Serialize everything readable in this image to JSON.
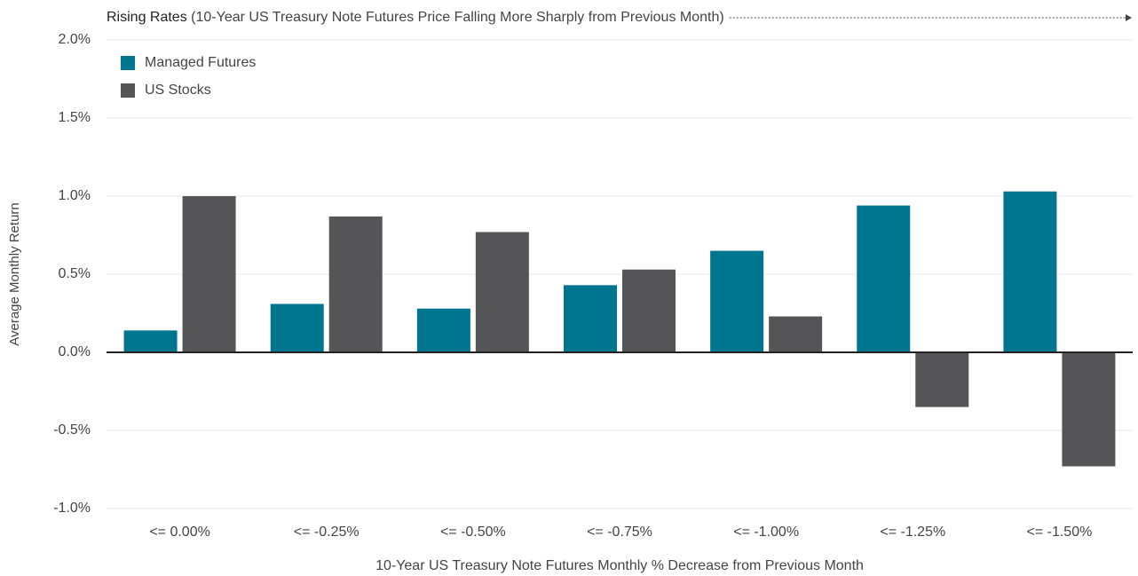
{
  "chart_data": {
    "type": "bar",
    "title": "Rising Rates",
    "subtitle": "(10-Year US Treasury Note Futures Price Falling More Sharply from Previous Month)",
    "x_label": "10-Year US Treasury Note Futures Monthly % Decrease from Previous Month",
    "y_label": "Average Monthly Return",
    "categories": [
      "<= 0.00%",
      "<= -0.25%",
      "<= -0.50%",
      "<= -0.75%",
      "<= -1.00%",
      "<= -1.25%",
      "<= -1.50%"
    ],
    "series": [
      {
        "name": "Managed Futures",
        "color": "#00758f",
        "values": [
          0.14,
          0.31,
          0.28,
          0.43,
          0.65,
          0.94,
          1.03
        ]
      },
      {
        "name": "US Stocks",
        "color": "#555557",
        "values": [
          1.0,
          0.87,
          0.77,
          0.53,
          0.23,
          -0.35,
          -0.73
        ]
      }
    ],
    "ylim": [
      -1.0,
      2.0
    ],
    "yticks": [
      {
        "value": -1.0,
        "label": "-1.0%"
      },
      {
        "value": -0.5,
        "label": "-0.5%"
      },
      {
        "value": 0.0,
        "label": "0.0%"
      },
      {
        "value": 0.5,
        "label": "0.5%"
      },
      {
        "value": 1.0,
        "label": "1.0%"
      },
      {
        "value": 1.5,
        "label": "1.5%"
      },
      {
        "value": 2.0,
        "label": "2.0%"
      }
    ],
    "grid": true,
    "legend": "upper left"
  }
}
